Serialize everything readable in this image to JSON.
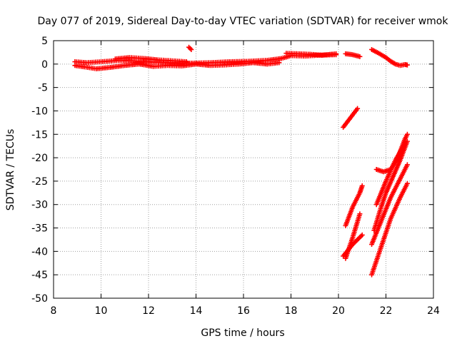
{
  "chart_data": {
    "type": "scatter",
    "title": "Day 077 of 2019, Sidereal Day-to-day VTEC variation (SDTVAR) for receiver wmok",
    "xlabel": "GPS time / hours",
    "ylabel": "SDTVAR / TECUs",
    "xlim": [
      8,
      24
    ],
    "ylim": [
      -50,
      5
    ],
    "xticks": [
      8,
      10,
      12,
      14,
      16,
      18,
      20,
      22,
      24
    ],
    "yticks": [
      5,
      0,
      -5,
      -10,
      -15,
      -20,
      -25,
      -30,
      -35,
      -40,
      -45,
      -50
    ],
    "grid": true,
    "marker": "+",
    "colors": {
      "series": "#ff0000",
      "grid": "#a0a0a0",
      "axis": "#000000"
    },
    "series": [
      {
        "tracks": [
          {
            "x": [
              8.9,
              9.4,
              10.0,
              10.8,
              11.5,
              12.2,
              13.0,
              13.8,
              14.6,
              15.4,
              16.2,
              17.0,
              17.6,
              18.0,
              18.6,
              19.2,
              19.9
            ],
            "y": [
              0.5,
              0.3,
              0.5,
              0.8,
              0.6,
              0.4,
              0.3,
              0.2,
              0.3,
              0.5,
              0.6,
              0.8,
              1.2,
              1.8,
              1.7,
              1.9,
              2.0
            ]
          },
          {
            "x": [
              8.9,
              9.3,
              9.8,
              10.4,
              11.0,
              11.6,
              12.2,
              12.8,
              13.4,
              14.0,
              14.6,
              15.2,
              15.8,
              16.4,
              17.0,
              17.5
            ],
            "y": [
              -0.3,
              -0.6,
              -1.0,
              -0.7,
              -0.3,
              0.0,
              -0.5,
              -0.3,
              -0.4,
              0.0,
              -0.3,
              -0.2,
              0.0,
              0.3,
              0.0,
              0.3
            ]
          },
          {
            "x": [
              10.6,
              11.2,
              11.8,
              12.4,
              13.0,
              13.6
            ],
            "y": [
              1.1,
              1.4,
              1.2,
              0.9,
              0.7,
              0.5
            ]
          },
          {
            "x": [
              17.8,
              18.3,
              18.8,
              19.3,
              19.9
            ],
            "y": [
              2.3,
              2.2,
              2.1,
              1.9,
              2.2
            ]
          },
          {
            "x": [
              13.7,
              13.8
            ],
            "y": [
              3.6,
              3.1
            ]
          },
          {
            "x": [
              20.3,
              20.6,
              20.9
            ],
            "y": [
              2.2,
              2.0,
              1.6
            ]
          },
          {
            "x": [
              21.4,
              21.7,
              22.0,
              22.2,
              22.4,
              22.6,
              22.8,
              22.9
            ],
            "y": [
              3.1,
              2.3,
              1.4,
              0.6,
              0.0,
              -0.3,
              -0.1,
              -0.2
            ]
          },
          {
            "x": [
              20.2,
              20.5,
              20.8
            ],
            "y": [
              -13.5,
              -11.5,
              -9.5
            ]
          },
          {
            "x": [
              20.3,
              20.6,
              20.9,
              21.0
            ],
            "y": [
              -34.5,
              -30.5,
              -27.5,
              -26.0
            ]
          },
          {
            "x": [
              20.3,
              20.6,
              20.9
            ],
            "y": [
              -41.5,
              -37.0,
              -32.0
            ]
          },
          {
            "x": [
              20.2,
              20.6,
              21.0
            ],
            "y": [
              -41.0,
              -38.5,
              -36.5
            ]
          },
          {
            "x": [
              21.4,
              21.8,
              22.2,
              22.6,
              22.9
            ],
            "y": [
              -45.0,
              -39.0,
              -33.0,
              -28.5,
              -25.5
            ]
          },
          {
            "x": [
              21.4,
              21.8,
              22.2,
              22.6,
              22.9
            ],
            "y": [
              -38.5,
              -33.5,
              -28.5,
              -24.5,
              -21.5
            ]
          },
          {
            "x": [
              21.5,
              21.8,
              22.0,
              22.3,
              22.6,
              22.9
            ],
            "y": [
              -35.5,
              -30.5,
              -27.5,
              -24.0,
              -20.5,
              -16.5
            ]
          },
          {
            "x": [
              21.6,
              22.0,
              22.4,
              22.8
            ],
            "y": [
              -30.0,
              -25.0,
              -20.5,
              -17.0
            ]
          },
          {
            "x": [
              21.6,
              21.9,
              22.2,
              22.5,
              22.8,
              22.9
            ],
            "y": [
              -22.5,
              -23.0,
              -22.5,
              -20.0,
              -16.0,
              -15.0
            ]
          }
        ]
      }
    ]
  }
}
